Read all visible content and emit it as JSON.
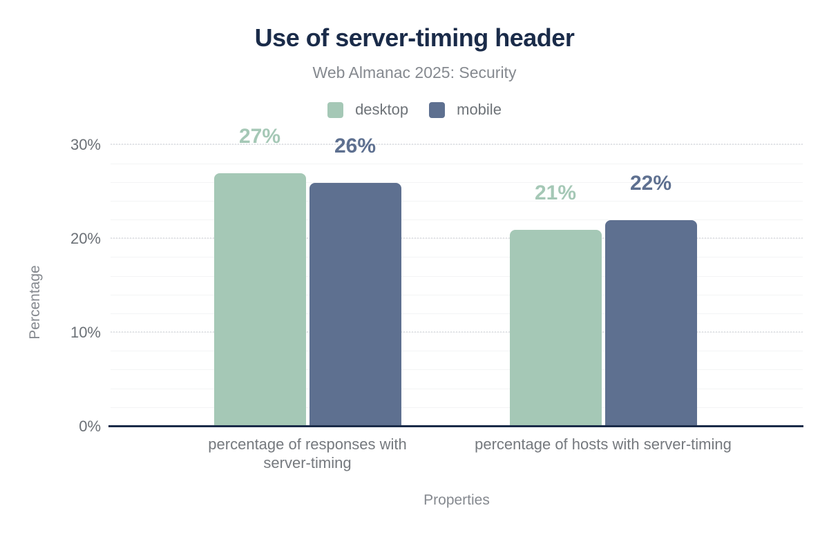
{
  "chart_data": {
    "type": "bar",
    "title": "Use of server-timing header",
    "subtitle": "Web Almanac 2025: Security",
    "xlabel": "Properties",
    "ylabel": "Percentage",
    "categories": [
      "percentage of responses with server-timing",
      "percentage of hosts with server-timing"
    ],
    "series": [
      {
        "name": "desktop",
        "color": "#a5c8b6",
        "values": [
          27,
          21
        ],
        "labels": [
          "27%",
          "21%"
        ]
      },
      {
        "name": "mobile",
        "color": "#5e7090",
        "values": [
          26,
          22
        ],
        "labels": [
          "26%",
          "22%"
        ]
      }
    ],
    "ylim": [
      0,
      31.5
    ],
    "yticks": [
      0,
      10,
      20,
      30
    ],
    "ytick_labels": [
      "0%",
      "10%",
      "20%",
      "30%"
    ],
    "grid": {
      "minor_step": 2,
      "major_ticks": [
        10,
        20,
        30
      ]
    },
    "legend_position": "top",
    "colors": {
      "axis": "#1a2b49",
      "title": "#1a2b49",
      "muted_text": "#85898f",
      "tick_text": "#6b7076"
    }
  }
}
